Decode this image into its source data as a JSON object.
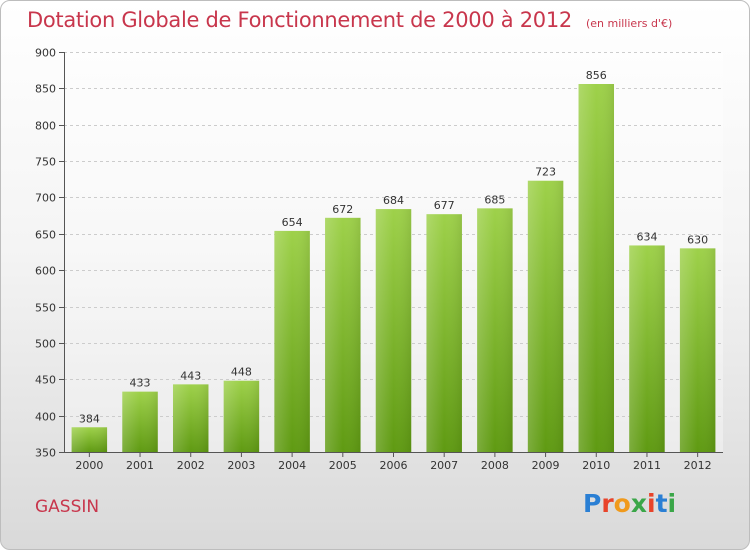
{
  "header": {
    "title": "Dotation Globale de Fonctionnement de 2000 à 2012",
    "subtitle": "(en milliers d'€)"
  },
  "footer": {
    "commune": "GASSIN",
    "logo_text": "Proxiti",
    "logo_colors": [
      "#2a7fd4",
      "#e8432a",
      "#f09a1c",
      "#3aa648",
      "#e8432a",
      "#2a7fd4",
      "#3aa648"
    ]
  },
  "colors": {
    "bar_top": "#9ed14a",
    "bar_bottom": "#5f9a12",
    "title": "#c8364c",
    "grid": "#cccccc"
  },
  "chart_data": {
    "type": "bar",
    "title": "Dotation Globale de Fonctionnement de 2000 à 2012",
    "subtitle": "(en milliers d'€)",
    "categories": [
      "2000",
      "2001",
      "2002",
      "2003",
      "2004",
      "2005",
      "2006",
      "2007",
      "2008",
      "2009",
      "2010",
      "2011",
      "2012"
    ],
    "values": [
      384,
      433,
      443,
      448,
      654,
      672,
      684,
      677,
      685,
      723,
      856,
      634,
      630
    ],
    "ylim": [
      350,
      900
    ],
    "yticks": [
      350,
      400,
      450,
      500,
      550,
      600,
      650,
      700,
      750,
      800,
      850,
      900
    ],
    "grid": true,
    "xlabel": "",
    "ylabel": ""
  }
}
